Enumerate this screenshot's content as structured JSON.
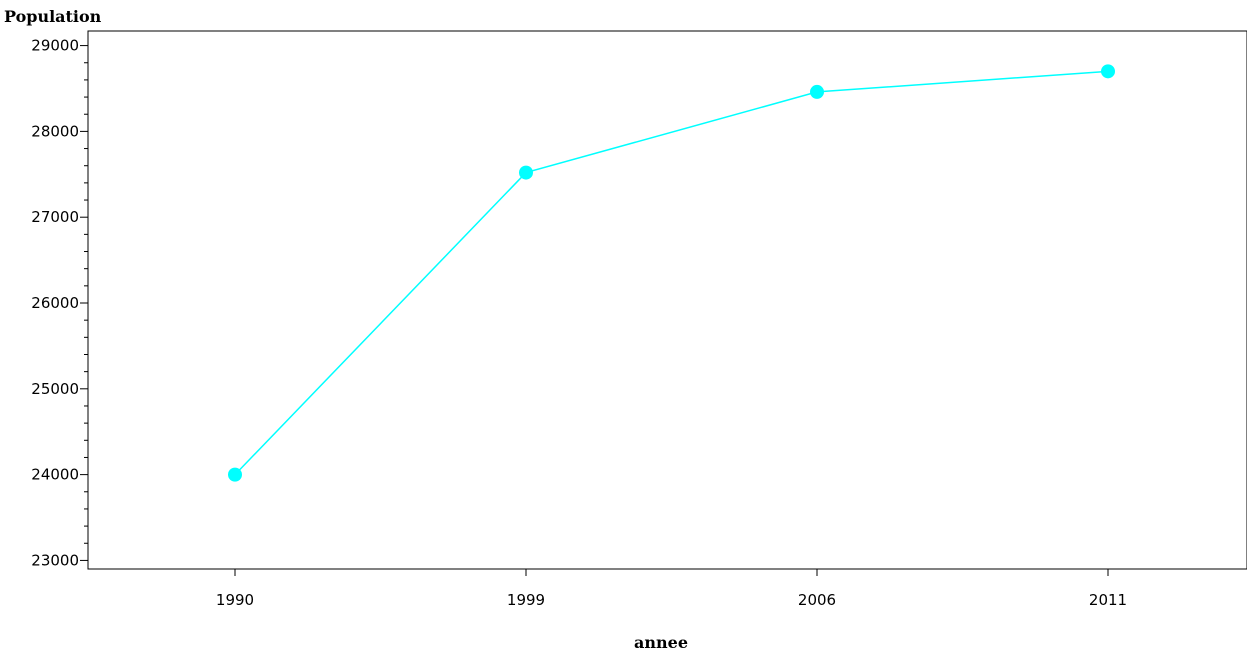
{
  "chart_data": {
    "type": "line",
    "ylabel": "Population",
    "xlabel": "annee",
    "categories": [
      "1990",
      "1999",
      "2006",
      "2011"
    ],
    "series": [
      {
        "values": [
          24000,
          27520,
          28460,
          28700
        ],
        "color": "#00ffff"
      }
    ],
    "ylim": [
      22900,
      29170
    ],
    "yticks": [
      23000,
      24000,
      25000,
      26000,
      27000,
      28000,
      29000
    ],
    "minor_tick_step": 200,
    "grid": false,
    "legend": "none"
  }
}
